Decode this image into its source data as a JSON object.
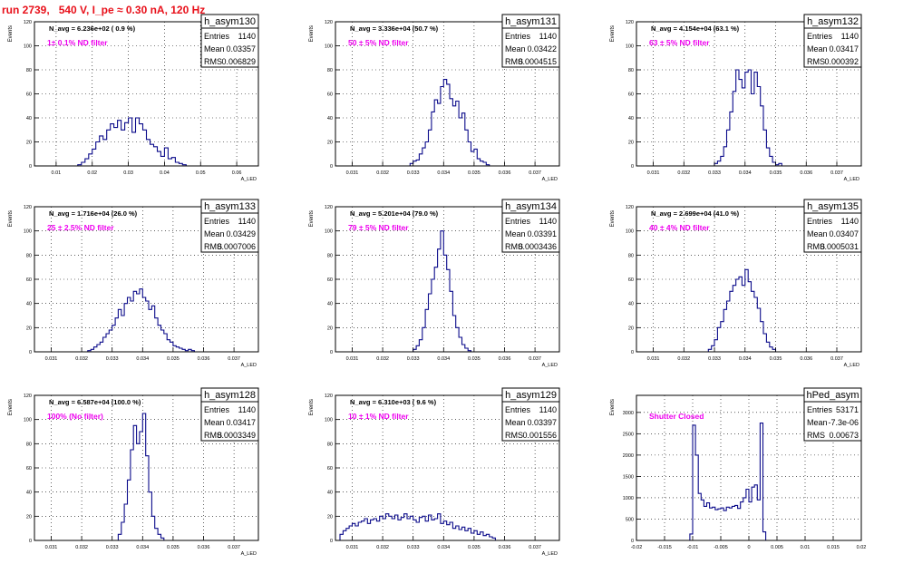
{
  "title": "run 2739,   540 V, I_pe ≈ 0.30 nA, 120 Hz",
  "colors": {
    "title": "#e8101a",
    "filter": "#ee00ee",
    "hist": "#0a0a8a",
    "frame": "#000000"
  },
  "chart_data": [
    {
      "type": "histogram",
      "name": "h_asym130",
      "navg": "N_avg = 6.236e+02 ( 0.9 %)",
      "filter": "1± 0.1% ND filter",
      "stats": [
        [
          "Entries",
          "1140"
        ],
        [
          "Mean",
          "0.03357"
        ],
        [
          "RMS",
          "0.006829"
        ]
      ],
      "ylabel": "Events",
      "xlabel": "A_LED",
      "xlim": [
        0.004,
        0.066
      ],
      "ylim": [
        0,
        120
      ],
      "xticks": [
        "0.01",
        "0.02",
        "0.03",
        "0.04",
        "0.05",
        "0.06"
      ],
      "xtick_values": [
        0.01,
        0.02,
        0.03,
        0.04,
        0.05,
        0.06
      ],
      "yticks": [
        0,
        20,
        40,
        60,
        80,
        100,
        120
      ],
      "bin_start": 0.016,
      "bin_width": 0.001,
      "values": [
        1,
        3,
        6,
        10,
        14,
        20,
        25,
        22,
        30,
        35,
        32,
        38,
        30,
        36,
        40,
        28,
        40,
        35,
        30,
        22,
        18,
        16,
        12,
        8,
        15,
        6,
        7,
        3,
        2,
        1
      ]
    },
    {
      "type": "histogram",
      "name": "h_asym131",
      "navg": "N_avg = 3.336e+04 (50.7 %)",
      "filter": "50 ± 5% ND filter",
      "stats": [
        [
          "Entries",
          "1140"
        ],
        [
          "Mean",
          "0.03422"
        ],
        [
          "RMS",
          "0.0004515"
        ]
      ],
      "ylabel": "Events",
      "xlabel": "A_LED",
      "xlim": [
        0.03045,
        0.0378
      ],
      "ylim": [
        0,
        120
      ],
      "xticks": [
        "0.031",
        "0.032",
        "0.033",
        "0.034",
        "0.035",
        "0.036",
        "0.037"
      ],
      "xtick_values": [
        0.031,
        0.032,
        0.033,
        0.034,
        0.035,
        0.036,
        0.037
      ],
      "yticks": [
        0,
        20,
        40,
        60,
        80,
        100,
        120
      ],
      "bin_start": 0.0329,
      "bin_width": 0.0001,
      "values": [
        2,
        4,
        5,
        10,
        15,
        20,
        30,
        45,
        55,
        52,
        66,
        72,
        68,
        56,
        50,
        54,
        40,
        44,
        30,
        20,
        12,
        14,
        6,
        4,
        3,
        1
      ]
    },
    {
      "type": "histogram",
      "name": "h_asym132",
      "navg": "N_avg = 4.154e+04 (63.1 %)",
      "filter": "63 ± 5% ND filter",
      "stats": [
        [
          "Entries",
          "1140"
        ],
        [
          "Mean",
          "0.03417"
        ],
        [
          "RMS",
          "0.000392"
        ]
      ],
      "ylabel": "Events",
      "xlabel": "A_LED",
      "xlim": [
        0.03045,
        0.0378
      ],
      "ylim": [
        0,
        120
      ],
      "xticks": [
        "0.031",
        "0.032",
        "0.033",
        "0.034",
        "0.035",
        "0.036",
        "0.037"
      ],
      "xtick_values": [
        0.031,
        0.032,
        0.033,
        0.034,
        0.035,
        0.036,
        0.037
      ],
      "yticks": [
        0,
        20,
        40,
        60,
        80,
        100,
        120
      ],
      "bin_start": 0.033,
      "bin_width": 0.0001,
      "values": [
        2,
        4,
        8,
        16,
        30,
        45,
        62,
        80,
        72,
        65,
        78,
        80,
        60,
        78,
        66,
        50,
        30,
        15,
        8,
        3,
        1,
        2
      ]
    },
    {
      "type": "histogram",
      "name": "h_asym133",
      "navg": "N_avg = 1.716e+04 (26.0 %)",
      "filter": "25 ± 2.5% ND filter",
      "stats": [
        [
          "Entries",
          "1140"
        ],
        [
          "Mean",
          "0.03429"
        ],
        [
          "RMS",
          "0.0007006"
        ]
      ],
      "ylabel": "Events",
      "xlabel": "A_LED",
      "xlim": [
        0.03045,
        0.0378
      ],
      "ylim": [
        0,
        120
      ],
      "xticks": [
        "0.031",
        "0.032",
        "0.033",
        "0.034",
        "0.035",
        "0.036",
        "0.037"
      ],
      "xtick_values": [
        0.031,
        0.032,
        0.033,
        0.034,
        0.035,
        0.036,
        0.037
      ],
      "yticks": [
        0,
        20,
        40,
        60,
        80,
        100,
        120
      ],
      "bin_start": 0.0322,
      "bin_width": 0.0001,
      "values": [
        1,
        2,
        4,
        6,
        8,
        12,
        15,
        18,
        22,
        28,
        35,
        30,
        40,
        45,
        42,
        50,
        48,
        52,
        45,
        42,
        35,
        38,
        28,
        22,
        18,
        15,
        10,
        8,
        5,
        4,
        3,
        2,
        1,
        2,
        1
      ]
    },
    {
      "type": "histogram",
      "name": "h_asym134",
      "navg": "N_avg = 5.201e+04 (79.0 %)",
      "filter": "79 ± 5% ND filter",
      "stats": [
        [
          "Entries",
          "1140"
        ],
        [
          "Mean",
          "0.03391"
        ],
        [
          "RMS",
          "0.0003436"
        ]
      ],
      "ylabel": "Events",
      "xlabel": "A_LED",
      "xlim": [
        0.03045,
        0.0378
      ],
      "ylim": [
        0,
        120
      ],
      "xticks": [
        "0.031",
        "0.032",
        "0.033",
        "0.034",
        "0.035",
        "0.036",
        "0.037"
      ],
      "xtick_values": [
        0.031,
        0.032,
        0.033,
        0.034,
        0.035,
        0.036,
        0.037
      ],
      "yticks": [
        0,
        20,
        40,
        60,
        80,
        100,
        120
      ],
      "bin_start": 0.033,
      "bin_width": 0.0001,
      "values": [
        2,
        5,
        10,
        20,
        35,
        48,
        60,
        70,
        85,
        100,
        80,
        68,
        50,
        30,
        20,
        12,
        6,
        3,
        1
      ]
    },
    {
      "type": "histogram",
      "name": "h_asym135",
      "navg": "N_avg = 2.699e+04 (41.0 %)",
      "filter": "40 ± 4% ND filter",
      "stats": [
        [
          "Entries",
          "1140"
        ],
        [
          "Mean",
          "0.03407"
        ],
        [
          "RMS",
          "0.0005031"
        ]
      ],
      "ylabel": "Events",
      "xlabel": "A_LED",
      "xlim": [
        0.03045,
        0.0378
      ],
      "ylim": [
        0,
        120
      ],
      "xticks": [
        "0.031",
        "0.032",
        "0.033",
        "0.034",
        "0.035",
        "0.036",
        "0.037"
      ],
      "xtick_values": [
        0.031,
        0.032,
        0.033,
        0.034,
        0.035,
        0.036,
        0.037
      ],
      "yticks": [
        0,
        20,
        40,
        60,
        80,
        100,
        120
      ],
      "bin_start": 0.0328,
      "bin_width": 0.0001,
      "values": [
        2,
        5,
        10,
        20,
        25,
        35,
        42,
        50,
        55,
        60,
        62,
        55,
        68,
        58,
        50,
        45,
        36,
        25,
        15,
        8,
        4,
        2
      ]
    },
    {
      "type": "histogram",
      "name": "h_asym128",
      "navg": "N_avg = 6.587e+04 (100.0 %)",
      "filter": "100% (No filter)",
      "stats": [
        [
          "Entries",
          "1140"
        ],
        [
          "Mean",
          "0.03417"
        ],
        [
          "RMS",
          "0.0003349"
        ]
      ],
      "ylabel": "Events",
      "xlabel": "A_LED",
      "xlim": [
        0.03045,
        0.0378
      ],
      "ylim": [
        0,
        120
      ],
      "xticks": [
        "0.031",
        "0.032",
        "0.033",
        "0.034",
        "0.035",
        "0.036",
        "0.037"
      ],
      "xtick_values": [
        0.031,
        0.032,
        0.033,
        0.034,
        0.035,
        0.036,
        0.037
      ],
      "yticks": [
        0,
        20,
        40,
        60,
        80,
        100,
        120
      ],
      "bin_start": 0.0332,
      "bin_width": 0.0001,
      "values": [
        5,
        15,
        30,
        50,
        75,
        95,
        80,
        90,
        105,
        70,
        40,
        20,
        10,
        5,
        2
      ]
    },
    {
      "type": "histogram",
      "name": "h_asym129",
      "navg": "N_avg = 6.310e+03 ( 9.6 %)",
      "filter": "10 ± 1% ND filter",
      "stats": [
        [
          "Entries",
          "1140"
        ],
        [
          "Mean",
          "0.03397"
        ],
        [
          "RMS",
          "0.001556"
        ]
      ],
      "ylabel": "Events",
      "xlabel": "A_LED",
      "xlim": [
        0.03045,
        0.0378
      ],
      "ylim": [
        0,
        120
      ],
      "xticks": [
        "0.031",
        "0.032",
        "0.033",
        "0.034",
        "0.035",
        "0.036",
        "0.037"
      ],
      "xtick_values": [
        0.031,
        0.032,
        0.033,
        0.034,
        0.035,
        0.036,
        0.037
      ],
      "yticks": [
        0,
        20,
        40,
        60,
        80,
        100,
        120
      ],
      "bin_start": 0.0306,
      "bin_width": 0.0001,
      "values": [
        5,
        8,
        10,
        12,
        14,
        12,
        15,
        16,
        18,
        14,
        17,
        18,
        16,
        20,
        18,
        22,
        20,
        18,
        21,
        17,
        19,
        22,
        18,
        20,
        17,
        15,
        19,
        20,
        16,
        21,
        17,
        18,
        22,
        14,
        16,
        13,
        15,
        10,
        12,
        9,
        11,
        8,
        10,
        6,
        8,
        5,
        7,
        4,
        5,
        3,
        2
      ]
    },
    {
      "type": "histogram",
      "name": "hPed_asym",
      "navg": "",
      "filter": "Shutter Closed",
      "stats": [
        [
          "Entries",
          "53171"
        ],
        [
          "Mean",
          "-7.3e-06"
        ],
        [
          "RMS",
          "0.00673"
        ]
      ],
      "ylabel": "Events",
      "xlabel": "",
      "xlim": [
        -0.02,
        0.02
      ],
      "ylim": [
        0,
        3400
      ],
      "xticks": [
        "-0.02",
        "-0.015",
        "-0.01",
        "-0.005",
        "0",
        "0.005",
        "0.01",
        "0.015",
        "0.02"
      ],
      "xtick_values": [
        -0.02,
        -0.015,
        -0.01,
        -0.005,
        0,
        0.005,
        0.01,
        0.015,
        0.02
      ],
      "yticks": [
        0,
        500,
        1000,
        1500,
        2000,
        2500,
        3000
      ],
      "bin_start": -0.0105,
      "bin_width": 0.0005,
      "values": [
        150,
        2700,
        2000,
        1100,
        950,
        800,
        880,
        760,
        780,
        720,
        740,
        760,
        700,
        780,
        760,
        800,
        820,
        750,
        900,
        1000,
        1200,
        900,
        1250,
        1300,
        950,
        2750,
        200
      ]
    }
  ]
}
